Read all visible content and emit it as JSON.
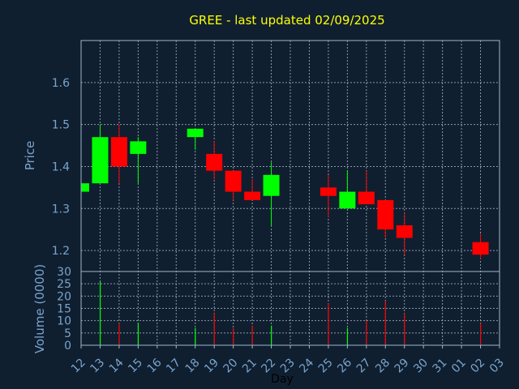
{
  "colors": {
    "background": "#0f1f30",
    "plot_background": "#0f1f30",
    "title": "#ffff00",
    "axis_text": "#7aa4cc",
    "axis_line": "#9fb6cc",
    "grid": "#b4c4d4",
    "up": "#00ff00",
    "down": "#ff0000",
    "day_label": "#000000"
  },
  "chart_data": [
    {
      "type": "candlestick",
      "title": "GREE - last updated 02/09/2025",
      "ylabel": "Price",
      "ylim": [
        1.15,
        1.7
      ],
      "yticks": [
        "1.2",
        "1.3",
        "1.4",
        "1.5",
        "1.6"
      ],
      "grid": true,
      "candles": [
        {
          "day": "12",
          "open": 1.34,
          "close": 1.36,
          "high": 1.36,
          "low": 1.34
        },
        {
          "day": "13",
          "open": 1.36,
          "close": 1.47,
          "high": 1.5,
          "low": 1.36
        },
        {
          "day": "14",
          "open": 1.47,
          "close": 1.4,
          "high": 1.5,
          "low": 1.36
        },
        {
          "day": "15",
          "open": 1.43,
          "close": 1.46,
          "high": 1.47,
          "low": 1.36
        },
        {
          "day": "18",
          "open": 1.47,
          "close": 1.49,
          "high": 1.49,
          "low": 1.44
        },
        {
          "day": "19",
          "open": 1.43,
          "close": 1.39,
          "high": 1.46,
          "low": 1.37
        },
        {
          "day": "20",
          "open": 1.39,
          "close": 1.34,
          "high": 1.39,
          "low": 1.32
        },
        {
          "day": "21",
          "open": 1.34,
          "close": 1.32,
          "high": 1.37,
          "low": 1.32
        },
        {
          "day": "22",
          "open": 1.33,
          "close": 1.38,
          "high": 1.41,
          "low": 1.26
        },
        {
          "day": "25",
          "open": 1.35,
          "close": 1.33,
          "high": 1.38,
          "low": 1.28
        },
        {
          "day": "26",
          "open": 1.3,
          "close": 1.34,
          "high": 1.39,
          "low": 1.3
        },
        {
          "day": "27",
          "open": 1.34,
          "close": 1.31,
          "high": 1.39,
          "low": 1.31
        },
        {
          "day": "28",
          "open": 1.32,
          "close": 1.25,
          "high": 1.32,
          "low": 1.23
        },
        {
          "day": "29",
          "open": 1.26,
          "close": 1.23,
          "high": 1.29,
          "low": 1.19
        },
        {
          "day": "02",
          "open": 1.22,
          "close": 1.19,
          "high": 1.24,
          "low": 1.18
        }
      ]
    },
    {
      "type": "bar",
      "ylabel": "Volume (0000)",
      "xlabel": "Day",
      "ylim": [
        0,
        30
      ],
      "yticks": [
        "0",
        "5",
        "10",
        "15",
        "20",
        "25",
        "30"
      ],
      "grid": true,
      "categories": [
        "12",
        "13",
        "14",
        "15",
        "16",
        "17",
        "18",
        "19",
        "20",
        "21",
        "22",
        "23",
        "24",
        "25",
        "26",
        "27",
        "28",
        "29",
        "30",
        "31",
        "01",
        "02",
        "03"
      ],
      "volumes": [
        {
          "day": "13",
          "value": 26,
          "direction": "up"
        },
        {
          "day": "14",
          "value": 9,
          "direction": "down"
        },
        {
          "day": "15",
          "value": 9,
          "direction": "up"
        },
        {
          "day": "18",
          "value": 7,
          "direction": "up"
        },
        {
          "day": "19",
          "value": 13,
          "direction": "down"
        },
        {
          "day": "20",
          "value": 7,
          "direction": "down"
        },
        {
          "day": "21",
          "value": 8,
          "direction": "down"
        },
        {
          "day": "22",
          "value": 8,
          "direction": "up"
        },
        {
          "day": "25",
          "value": 17,
          "direction": "down"
        },
        {
          "day": "26",
          "value": 7,
          "direction": "up"
        },
        {
          "day": "27",
          "value": 10,
          "direction": "down"
        },
        {
          "day": "28",
          "value": 18,
          "direction": "down"
        },
        {
          "day": "29",
          "value": 13,
          "direction": "down"
        },
        {
          "day": "02",
          "value": 9,
          "direction": "down"
        }
      ]
    }
  ]
}
